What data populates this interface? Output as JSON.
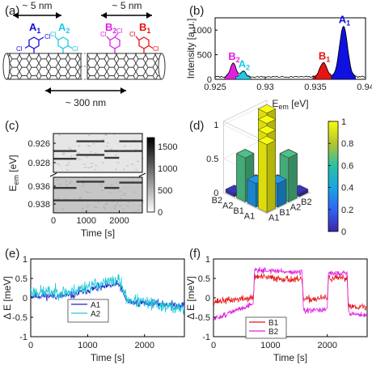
{
  "panel_labels": [
    "(a)",
    "(b)",
    "(c)",
    "(d)",
    "(e)",
    "(f)"
  ],
  "panel_a": {
    "left_dim": "~ 5 nm",
    "right_dim": "~ 5 nm",
    "bottom_dim": "~ 300 nm",
    "molecules": [
      {
        "sym": "A",
        "sub": "1",
        "color": "#1010e0"
      },
      {
        "sym": "A",
        "sub": "2",
        "color": "#1ec8e6"
      },
      {
        "sym": "B",
        "sub": "2",
        "color": "#e020e0"
      },
      {
        "sym": "B",
        "sub": "1",
        "color": "#e81414"
      }
    ],
    "atom_label": "Cl"
  },
  "chart_data": [
    {
      "type": "line",
      "panel": "b",
      "xlabel_main": "E",
      "xlabel_sub": "em",
      "xlabel_unit": " [eV]",
      "ylabel": "Intensity [a.u.]",
      "xlim": [
        0.925,
        0.94
      ],
      "ylim": [
        0,
        1250
      ],
      "xticks": [
        "0.925",
        "0.93",
        "0.935",
        "0.94"
      ],
      "yticks": [
        "0",
        "500",
        "1000"
      ],
      "baseline_level": 50,
      "peaks": [
        {
          "label": "B",
          "sub": "2",
          "x": 0.9268,
          "height": 280,
          "width": 0.00028,
          "color": "#e020e0"
        },
        {
          "label": "A",
          "sub": "2",
          "x": 0.9278,
          "height": 120,
          "width": 0.00025,
          "color": "#1ec8e6"
        },
        {
          "label": "B",
          "sub": "1",
          "x": 0.9358,
          "height": 290,
          "width": 0.00035,
          "color": "#e81414"
        },
        {
          "label": "A",
          "sub": "1",
          "x": 0.9378,
          "height": 1030,
          "width": 0.0004,
          "color": "#1010e0"
        }
      ]
    },
    {
      "type": "heatmap",
      "panel": "c",
      "xlabel": "Time  [s]",
      "ylabel_main": "E",
      "ylabel_sub": "em",
      "ylabel_unit": " [eV]",
      "xlim": [
        0,
        2700
      ],
      "xticks": [
        "0",
        "1000",
        "2000"
      ],
      "yticks_upper": [
        "0.926",
        "0.928"
      ],
      "yticks_lower": [
        "0.936",
        "0.938"
      ],
      "upper_range": [
        0.925,
        0.929
      ],
      "lower_range": [
        0.935,
        0.939
      ],
      "colorbar_ticks": [
        "0",
        "500",
        "1000",
        "1500"
      ],
      "colorbar_range": [
        0,
        1700
      ],
      "lines": [
        {
          "name": "B2",
          "band": "upper",
          "segments": [
            [
              0,
              700,
              0.9268
            ],
            [
              700,
              1550,
              0.9258
            ],
            [
              1550,
              2000,
              0.9268
            ],
            [
              2000,
              2700,
              0.9258
            ]
          ]
        },
        {
          "name": "A2",
          "band": "upper",
          "segments": [
            [
              0,
              700,
              0.9276
            ],
            [
              700,
              1550,
              0.9272
            ],
            [
              1550,
              2000,
              0.9275
            ],
            [
              2000,
              2700,
              0.9268
            ]
          ]
        },
        {
          "name": "B1",
          "band": "lower",
          "segments": [
            [
              0,
              700,
              0.9362
            ],
            [
              700,
              1550,
              0.9355
            ],
            [
              1550,
              2000,
              0.9362
            ],
            [
              2000,
              2700,
              0.9356
            ]
          ]
        },
        {
          "name": "A1",
          "band": "lower",
          "segments": [
            [
              0,
              2700,
              0.9376
            ]
          ]
        }
      ]
    },
    {
      "type": "bar3d",
      "panel": "d",
      "row_labels": [
        "A1",
        "B1",
        "A2",
        "B2"
      ],
      "col_labels": [
        "A1",
        "B1",
        "A2",
        "B2"
      ],
      "zticks": [
        "0",
        "0.5",
        "1"
      ],
      "zlim": [
        0,
        1
      ],
      "colorbar_ticks": [
        "0",
        "0.2",
        "0.4",
        "0.6",
        "0.8",
        "1"
      ],
      "values": [
        [
          1.0,
          0.35,
          0.65,
          0.05
        ],
        [
          0.35,
          1.0,
          0.2,
          0.5
        ],
        [
          0.65,
          0.2,
          1.0,
          0.05
        ],
        [
          0.05,
          0.5,
          0.05,
          1.0
        ]
      ]
    },
    {
      "type": "line",
      "panel": "e",
      "xlabel": "Time [s]",
      "ylabel": "Δ E [meV]",
      "xlim": [
        0,
        2700
      ],
      "ylim": [
        -1,
        1
      ],
      "xticks": [
        "0",
        "1000",
        "2000"
      ],
      "yticks": [
        "-1",
        "-0.5",
        "0",
        "0.5",
        "1"
      ],
      "series": [
        {
          "name": "A1",
          "color": "#2020c8",
          "segments": [
            [
              0,
              0.05
            ],
            [
              700,
              0.05
            ],
            [
              1000,
              0.2
            ],
            [
              1550,
              0.35
            ],
            [
              1700,
              -0.1
            ],
            [
              2700,
              -0.2
            ]
          ],
          "noise": 0.1,
          "seed": 11
        },
        {
          "name": "A2",
          "color": "#20c8d8",
          "segments": [
            [
              0,
              0.15
            ],
            [
              700,
              0.15
            ],
            [
              1000,
              0.3
            ],
            [
              1550,
              0.45
            ],
            [
              1700,
              -0.05
            ],
            [
              2700,
              -0.3
            ]
          ],
          "noise": 0.17,
          "seed": 23
        }
      ]
    },
    {
      "type": "line",
      "panel": "f",
      "xlabel": "Time [s]",
      "ylabel": "Δ E [meV]",
      "xlim": [
        0,
        2700
      ],
      "ylim": [
        -1,
        1
      ],
      "xticks": [
        "0",
        "1000",
        "2000"
      ],
      "yticks": [
        "-1",
        "-0.5",
        "0",
        "0.5",
        "1"
      ],
      "series": [
        {
          "name": "B1",
          "color": "#e81414",
          "segments": [
            [
              0,
              -0.1
            ],
            [
              700,
              0.0
            ],
            [
              720,
              0.55
            ],
            [
              1560,
              0.45
            ],
            [
              1580,
              -0.05
            ],
            [
              2000,
              0.0
            ],
            [
              2020,
              0.5
            ],
            [
              2350,
              0.5
            ],
            [
              2370,
              -0.2
            ],
            [
              2700,
              -0.25
            ]
          ],
          "noise": 0.09,
          "seed": 37
        },
        {
          "name": "B2",
          "color": "#e020e0",
          "segments": [
            [
              0,
              -0.55
            ],
            [
              700,
              -0.15
            ],
            [
              720,
              0.72
            ],
            [
              1560,
              0.65
            ],
            [
              1580,
              -0.35
            ],
            [
              2000,
              -0.3
            ],
            [
              2020,
              0.62
            ],
            [
              2350,
              0.65
            ],
            [
              2370,
              -0.4
            ],
            [
              2700,
              -0.45
            ]
          ],
          "noise": 0.07,
          "seed": 51
        }
      ]
    }
  ]
}
